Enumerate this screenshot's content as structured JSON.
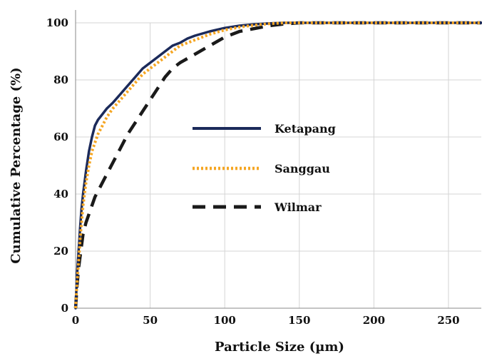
{
  "chart_data": {
    "type": "line",
    "title": "",
    "xlabel": "Particle Size (µm)",
    "ylabel": "Cumulative Percentage (%)",
    "xlim": [
      0,
      272
    ],
    "ylim": [
      0,
      100
    ],
    "xticks": [
      0,
      50,
      100,
      150,
      200,
      250
    ],
    "yticks": [
      0,
      20,
      40,
      60,
      80,
      100
    ],
    "grid": true,
    "legend_position": "center",
    "series": [
      {
        "name": "Ketapang",
        "color": "#1b2a5a",
        "style": "solid",
        "x": [
          0,
          1,
          2,
          3,
          4,
          5,
          7,
          9,
          11,
          13,
          15,
          18,
          21,
          25,
          30,
          35,
          40,
          45,
          50,
          55,
          60,
          65,
          70,
          75,
          80,
          90,
          100,
          110,
          120,
          130,
          140,
          150,
          200,
          272
        ],
        "y": [
          0,
          12,
          20,
          28,
          35,
          40,
          48,
          55,
          60,
          64,
          66,
          68,
          70,
          72,
          75,
          78,
          81,
          84,
          86,
          88,
          90,
          92,
          93,
          94.5,
          95.5,
          97,
          98.2,
          99,
          99.5,
          99.8,
          100,
          100,
          100,
          100
        ]
      },
      {
        "name": "Sanggau",
        "color": "#f5a623",
        "style": "dotted",
        "x": [
          0,
          1,
          2,
          3,
          4,
          5,
          7,
          9,
          11,
          13,
          15,
          18,
          21,
          25,
          30,
          35,
          40,
          45,
          50,
          55,
          60,
          65,
          70,
          75,
          80,
          90,
          100,
          110,
          120,
          130,
          140,
          150,
          200,
          272
        ],
        "y": [
          0,
          9,
          16,
          24,
          30,
          36,
          44,
          50,
          55,
          58,
          61,
          64,
          67,
          70,
          73,
          76,
          79,
          82,
          84,
          86,
          88,
          90,
          92,
          93,
          94,
          96,
          97.5,
          98.5,
          99.2,
          99.7,
          100,
          100,
          100,
          100
        ]
      },
      {
        "name": "Wilmar",
        "color": "#1a1a1a",
        "style": "dashed",
        "x": [
          0,
          1,
          2,
          3,
          4,
          5,
          7,
          9,
          11,
          13,
          15,
          20,
          25,
          30,
          35,
          40,
          45,
          50,
          55,
          60,
          65,
          70,
          80,
          90,
          100,
          110,
          120,
          130,
          140,
          150,
          200,
          272
        ],
        "y": [
          0,
          8,
          14,
          18,
          22,
          26,
          30,
          33,
          36,
          39,
          41,
          46,
          51,
          56,
          61,
          65,
          69,
          73,
          77,
          81,
          84,
          86,
          89,
          92,
          95,
          97,
          98,
          99,
          99.6,
          100,
          100,
          100
        ]
      }
    ]
  }
}
